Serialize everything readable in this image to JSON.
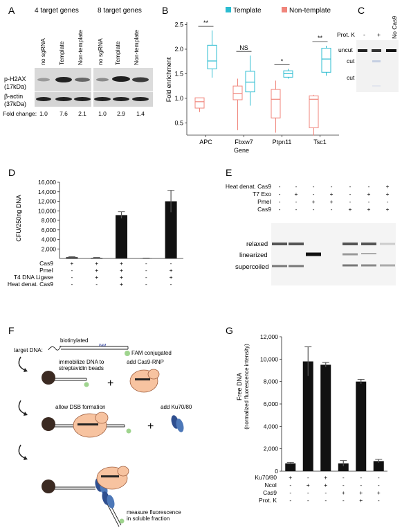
{
  "panels": {
    "A": {
      "letter": "A",
      "group1": "4 target genes",
      "group2": "8 target genes",
      "lanes": [
        "no sgRNA",
        "Template",
        "Non-template",
        "no sgRNA",
        "Template",
        "Non-template"
      ],
      "row1_label": "p-H2AX",
      "row1_sub": "(17kDa)",
      "row2_label": "β-actin",
      "row2_sub": "(37kDa)",
      "fold_label": "Fold change:",
      "fold_values": [
        "1.0",
        "7.6",
        "2.1",
        "1.0",
        "2.9",
        "1.4"
      ]
    },
    "B": {
      "letter": "B",
      "legend": [
        "Template",
        "Non-template"
      ],
      "sig": [
        "**",
        "NS",
        "*",
        "**"
      ]
    },
    "C": {
      "letter": "C",
      "prot_k": "Prot. K",
      "minus": "-",
      "plus": "+",
      "no_cas9": "No Cas9",
      "uncut": "uncut",
      "cut1": "cut",
      "cut2": "cut"
    },
    "D": {
      "letter": "D",
      "rows": [
        {
          "label": "Cas9",
          "signs": [
            "+",
            "+",
            "+",
            "-",
            "-"
          ]
        },
        {
          "label": "PmeI",
          "signs": [
            "-",
            "+",
            "+",
            "-",
            "+"
          ]
        },
        {
          "label": "T4 DNA Ligase",
          "signs": [
            "-",
            "+",
            "+",
            "-",
            "+"
          ]
        },
        {
          "label": "Heat denat. Cas9",
          "signs": [
            "-",
            "-",
            "+",
            "-",
            "-"
          ]
        }
      ]
    },
    "E": {
      "letter": "E",
      "rows": [
        {
          "label": "Heat denat. Cas9",
          "signs": [
            "-",
            "-",
            "-",
            "-",
            "-",
            "-",
            "+"
          ]
        },
        {
          "label": "T7 Exo",
          "signs": [
            "-",
            "+",
            "-",
            "+",
            "-",
            "+",
            "+"
          ]
        },
        {
          "label": "PmeI",
          "signs": [
            "-",
            "-",
            "+",
            "+",
            "-",
            "-",
            "-"
          ]
        },
        {
          "label": "Cas9",
          "signs": [
            "-",
            "-",
            "-",
            "-",
            "+",
            "+",
            "+"
          ]
        }
      ],
      "band_relaxed": "relaxed",
      "band_linearized": "linearized",
      "band_supercoiled": "supercoiled"
    },
    "F": {
      "letter": "F",
      "target_dna": "target DNA:",
      "biotinylated": "biotinylated",
      "pam": "PAM",
      "fam": "FAM conjugated",
      "step1": "immobilize DNA to",
      "step1b": "streptavidin beads",
      "add_cas9": "add Cas9-RNP",
      "step2": "allow DSB formation",
      "add_ku": "add Ku70/80",
      "step3": "measure fluorescence",
      "step3b": "in soluble fraction"
    },
    "G": {
      "letter": "G",
      "rows": [
        {
          "label": "Ku70/80",
          "signs": [
            "+",
            "-",
            "+",
            "-",
            "-",
            "-"
          ]
        },
        {
          "label": "NcoI",
          "signs": [
            "-",
            "+",
            "+",
            "-",
            "-",
            "-"
          ]
        },
        {
          "label": "Cas9",
          "signs": [
            "-",
            "-",
            "-",
            "+",
            "+",
            "+"
          ]
        },
        {
          "label": "Prot. K",
          "signs": [
            "-",
            "-",
            "-",
            "-",
            "+",
            "-"
          ]
        }
      ]
    }
  },
  "chart_data": [
    {
      "panel": "B",
      "type": "box",
      "xlabel": "Gene",
      "ylabel": "Fold enrichment",
      "ylim": [
        0.25,
        2.55
      ],
      "yticks": [
        "0.5",
        "1.0",
        "1.5",
        "2.0",
        "2.5"
      ],
      "categories": [
        "APC",
        "Fbxw7",
        "Ptpn11",
        "Tsc1"
      ],
      "series": [
        {
          "name": "Template",
          "color": "#2bbcd0",
          "boxes": [
            {
              "min": 1.42,
              "q1": 1.6,
              "median": 1.76,
              "q3": 2.08,
              "max": 2.38
            },
            {
              "min": 0.85,
              "q1": 1.13,
              "median": 1.33,
              "q3": 1.55,
              "max": 1.87
            },
            {
              "min": 1.4,
              "q1": 1.43,
              "median": 1.5,
              "q3": 1.56,
              "max": 1.6
            },
            {
              "min": 1.46,
              "q1": 1.53,
              "median": 1.8,
              "q3": 2.02,
              "max": 2.07
            }
          ]
        },
        {
          "name": "Non-template",
          "color": "#f0857b",
          "boxes": [
            {
              "min": 0.72,
              "q1": 0.8,
              "median": 0.93,
              "q3": 1.01,
              "max": 1.01
            },
            {
              "min": 0.35,
              "q1": 0.97,
              "median": 1.1,
              "q3": 1.25,
              "max": 1.4
            },
            {
              "min": 0.3,
              "q1": 0.6,
              "median": 0.98,
              "q3": 1.18,
              "max": 1.36
            },
            {
              "min": 0.24,
              "q1": 0.4,
              "median": 0.98,
              "q3": 1.05,
              "max": 1.07
            }
          ]
        }
      ]
    },
    {
      "panel": "D",
      "type": "bar",
      "ylabel": "CFU/250ng  DNA",
      "ylim": [
        0,
        16000
      ],
      "yticks": [
        "2,000",
        "4,000",
        "6,000",
        "8,000",
        "10,000",
        "12,000",
        "14,000",
        "16,000"
      ],
      "values": [
        250,
        120,
        9100,
        40,
        12000
      ],
      "errors": [
        120,
        80,
        700,
        40,
        2300
      ]
    },
    {
      "panel": "G",
      "type": "bar",
      "ylabel": "Free DNA",
      "ylabel2": "(normalized fluorescence intensity)",
      "ylim": [
        0,
        12000
      ],
      "yticks": [
        "0",
        "2,000",
        "4,000",
        "6,000",
        "8,000",
        "10,000",
        "12,000"
      ],
      "values": [
        700,
        9800,
        9500,
        700,
        8000,
        900
      ],
      "errors": [
        80,
        1300,
        200,
        250,
        200,
        150
      ]
    }
  ]
}
